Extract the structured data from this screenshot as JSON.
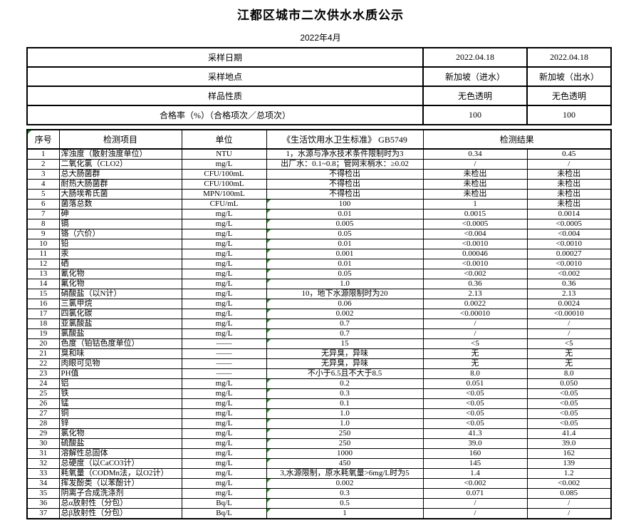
{
  "page": {
    "title": "江都区城市二次供水水质公示",
    "subtitle": "2022年4月"
  },
  "colors": {
    "indicator_green": "#169416",
    "border": "#000000",
    "background": "#ffffff"
  },
  "summary_table": {
    "rows": [
      {
        "label": "采样日期",
        "inflow": "2022.04.18",
        "outflow": "2022.04.18"
      },
      {
        "label": "采样地点",
        "inflow": "新加坡（进水）",
        "outflow": "新加坡（出水）"
      },
      {
        "label": "样品性质",
        "inflow": "无色透明",
        "outflow": "无色透明"
      },
      {
        "label": "合格率（%）（合格项次／总项次）",
        "inflow": "100",
        "outflow": "100"
      }
    ]
  },
  "results_table": {
    "headers": {
      "no": "序号",
      "item": "检测项目",
      "unit": "单位",
      "standard": "《生活饮用水卫生标准》 GB5749",
      "result": "检测结果"
    },
    "rows": [
      {
        "no": "1",
        "item": "浑浊度（散射浊度单位）",
        "unit": "NTU",
        "standard": "1，水源与净水技术条件限制时为3",
        "inflow": "0.34",
        "outflow": "0.45",
        "flag": false
      },
      {
        "no": "2",
        "item": "二氧化氯（CLO2）",
        "unit": "mg/L",
        "standard": "出厂水：0.1~0.8；管网末梢水：≥0.02",
        "inflow": "/",
        "outflow": "/",
        "flag": false
      },
      {
        "no": "3",
        "item": "总大肠菌群",
        "unit": "CFU/100mL",
        "standard": "不得检出",
        "inflow": "未检出",
        "outflow": "未检出",
        "flag": false
      },
      {
        "no": "4",
        "item": "耐热大肠菌群",
        "unit": "CFU/100mL",
        "standard": "不得检出",
        "inflow": "未检出",
        "outflow": "未检出",
        "flag": false
      },
      {
        "no": "5",
        "item": "大肠埃希氏菌",
        "unit": "MPN/100mL",
        "standard": "不得检出",
        "inflow": "未检出",
        "outflow": "未检出",
        "flag": false
      },
      {
        "no": "6",
        "item": "菌落总数",
        "unit": "CFU/mL",
        "standard": "100",
        "inflow": "1",
        "outflow": "未检出",
        "flag": true
      },
      {
        "no": "7",
        "item": "砷",
        "unit": "mg/L",
        "standard": "0.01",
        "inflow": "0.0015",
        "outflow": "0.0014",
        "flag": true
      },
      {
        "no": "8",
        "item": "镉",
        "unit": "mg/L",
        "standard": "0.005",
        "inflow": "<0.0005",
        "outflow": "<0.0005",
        "flag": true
      },
      {
        "no": "9",
        "item": "铬（六价）",
        "unit": "mg/L",
        "standard": "0.05",
        "inflow": "<0.004",
        "outflow": "<0.004",
        "flag": true
      },
      {
        "no": "10",
        "item": "铅",
        "unit": "mg/L",
        "standard": "0.01",
        "inflow": "<0.0010",
        "outflow": "<0.0010",
        "flag": true
      },
      {
        "no": "11",
        "item": "汞",
        "unit": "mg/L",
        "standard": "0.001",
        "inflow": "0.00046",
        "outflow": "0.00027",
        "flag": true
      },
      {
        "no": "12",
        "item": "硒",
        "unit": "mg/L",
        "standard": "0.01",
        "inflow": "<0.0010",
        "outflow": "<0.0010",
        "flag": true
      },
      {
        "no": "13",
        "item": "氰化物",
        "unit": "mg/L",
        "standard": "0.05",
        "inflow": "<0.002",
        "outflow": "<0.002",
        "flag": true
      },
      {
        "no": "14",
        "item": "氟化物",
        "unit": "mg/L",
        "standard": "1.0",
        "inflow": "0.36",
        "outflow": "0.36",
        "flag": true
      },
      {
        "no": "15",
        "item": "硝酸盐（以N计）",
        "unit": "mg/L",
        "standard": "10，地下水源限制时为20",
        "inflow": "2.13",
        "outflow": "2.13",
        "flag": false
      },
      {
        "no": "16",
        "item": "三氯甲烷",
        "unit": "mg/L",
        "standard": "0.06",
        "inflow": "0.0022",
        "outflow": "0.0024",
        "flag": true
      },
      {
        "no": "17",
        "item": "四氯化碳",
        "unit": "mg/L",
        "standard": "0.002",
        "inflow": "<0.00010",
        "outflow": "<0.00010",
        "flag": true
      },
      {
        "no": "18",
        "item": "亚氯酸盐",
        "unit": "mg/L",
        "standard": "0.7",
        "inflow": "/",
        "outflow": "/",
        "flag": true
      },
      {
        "no": "19",
        "item": "氯酸盐",
        "unit": "mg/L",
        "standard": "0.7",
        "inflow": "/",
        "outflow": "/",
        "flag": true
      },
      {
        "no": "20",
        "item": "色度（铂钴色度单位）",
        "unit": "——",
        "standard": "15",
        "inflow": "<5",
        "outflow": "<5",
        "flag": true
      },
      {
        "no": "21",
        "item": "臭和味",
        "unit": "——",
        "standard": "无异臭，异味",
        "inflow": "无",
        "outflow": "无",
        "flag": false
      },
      {
        "no": "22",
        "item": "肉眼可见物",
        "unit": "——",
        "standard": "无异臭，异味",
        "inflow": "无",
        "outflow": "无",
        "flag": false
      },
      {
        "no": "23",
        "item": "PH值",
        "unit": "——",
        "standard": "不小于6.5且不大于8.5",
        "inflow": "8.0",
        "outflow": "8.0",
        "flag": false
      },
      {
        "no": "24",
        "item": "铝",
        "unit": "mg/L",
        "standard": "0.2",
        "inflow": "0.051",
        "outflow": "0.050",
        "flag": true
      },
      {
        "no": "25",
        "item": "铁",
        "unit": "mg/L",
        "standard": "0.3",
        "inflow": "<0.05",
        "outflow": "<0.05",
        "flag": true
      },
      {
        "no": "26",
        "item": "锰",
        "unit": "mg/L",
        "standard": "0.1",
        "inflow": "<0.05",
        "outflow": "<0.05",
        "flag": true
      },
      {
        "no": "27",
        "item": "铜",
        "unit": "mg/L",
        "standard": "1.0",
        "inflow": "<0.05",
        "outflow": "<0.05",
        "flag": true
      },
      {
        "no": "28",
        "item": "锌",
        "unit": "mg/L",
        "standard": "1.0",
        "inflow": "<0.05",
        "outflow": "<0.05",
        "flag": true
      },
      {
        "no": "29",
        "item": "氯化物",
        "unit": "mg/L",
        "standard": "250",
        "inflow": "41.3",
        "outflow": "41.4",
        "flag": true
      },
      {
        "no": "30",
        "item": "硫酸盐",
        "unit": "mg/L",
        "standard": "250",
        "inflow": "39.0",
        "outflow": "39.0",
        "flag": true
      },
      {
        "no": "31",
        "item": "溶解性总固体",
        "unit": "mg/L",
        "standard": "1000",
        "inflow": "160",
        "outflow": "162",
        "flag": true
      },
      {
        "no": "32",
        "item": "总硬度（以CaCO3计）",
        "unit": "mg/L",
        "standard": "450",
        "inflow": "145",
        "outflow": "139",
        "flag": true
      },
      {
        "no": "33",
        "item": "耗氧量（CODMn法，以O2计）",
        "unit": "mg/L",
        "standard": "3,水源限制，原水耗氧量>6mg/L时为5",
        "inflow": "1.4",
        "outflow": "1.2",
        "flag": false
      },
      {
        "no": "34",
        "item": "挥发酚类（以苯酚计）",
        "unit": "mg/L",
        "standard": "0.002",
        "inflow": "<0.002",
        "outflow": "<0.002",
        "flag": true
      },
      {
        "no": "35",
        "item": "阴离子合成洗涤剂",
        "unit": "mg/L",
        "standard": "0.3",
        "inflow": "0.071",
        "outflow": "0.085",
        "flag": true
      },
      {
        "no": "36",
        "item": "总α放射性（分包）",
        "unit": "Bq/L",
        "standard": "0.5",
        "inflow": "/",
        "outflow": "/",
        "flag": true
      },
      {
        "no": "37",
        "item": "总β放射性（分包）",
        "unit": "Bq/L",
        "standard": "1",
        "inflow": "/",
        "outflow": "/",
        "flag": true
      }
    ]
  }
}
